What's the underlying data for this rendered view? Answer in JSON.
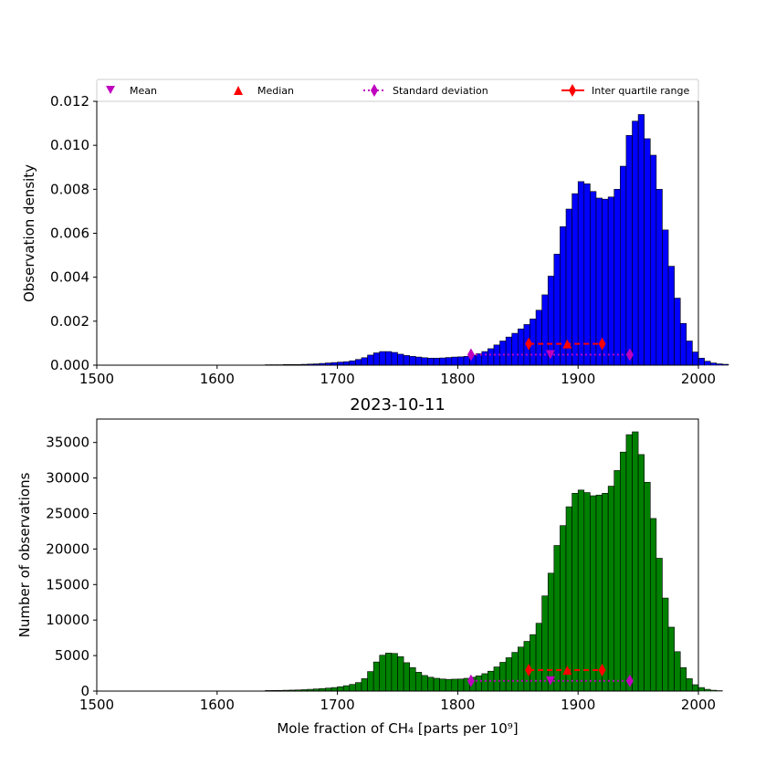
{
  "chart_data": [
    {
      "type": "bar",
      "title": "",
      "xlabel": "",
      "ylabel": "Observation density",
      "xlim": [
        1500,
        2000
      ],
      "ylim": [
        0,
        0.012
      ],
      "xticks": [
        1500,
        1600,
        1700,
        1800,
        1900,
        2000
      ],
      "yticks": [
        0.0,
        0.002,
        0.004,
        0.006,
        0.008,
        0.01,
        0.012
      ],
      "ytick_labels": [
        "0.000",
        "0.002",
        "0.004",
        "0.006",
        "0.008",
        "0.010",
        "0.012"
      ],
      "bar_color": "#0000ff",
      "bin_start": 1500,
      "bin_width": 5,
      "values": [
        0,
        0,
        0,
        0,
        0,
        0,
        0,
        0,
        0,
        0,
        0,
        0,
        0,
        0,
        0,
        0,
        0,
        0,
        0,
        0,
        0,
        0,
        0,
        0,
        0,
        0,
        0,
        0,
        2e-05,
        2e-05,
        2e-05,
        3e-05,
        3e-05,
        3e-05,
        4e-05,
        5e-05,
        6e-05,
        8e-05,
        0.0001,
        0.00012,
        0.00014,
        0.00016,
        0.0002,
        0.00026,
        0.00034,
        0.00046,
        0.00056,
        0.00062,
        0.00062,
        0.00058,
        0.0005,
        0.00044,
        0.0004,
        0.00037,
        0.00034,
        0.00032,
        0.00032,
        0.00033,
        0.00035,
        0.00037,
        0.00038,
        0.0004,
        0.00045,
        0.00052,
        0.00062,
        0.00075,
        0.00092,
        0.0011,
        0.00128,
        0.00145,
        0.00165,
        0.00185,
        0.0021,
        0.0025,
        0.0032,
        0.00405,
        0.00505,
        0.0063,
        0.0071,
        0.0078,
        0.00835,
        0.00825,
        0.0079,
        0.0076,
        0.00755,
        0.00765,
        0.008,
        0.00905,
        0.01045,
        0.0111,
        0.0114,
        0.0103,
        0.00955,
        0.008,
        0.00615,
        0.0045,
        0.00305,
        0.0019,
        0.0011,
        0.0006,
        0.00032,
        0.00018,
        0.0001,
        6e-05,
        4e-05
      ],
      "stats": {
        "mean": {
          "x": 1877,
          "y": 0.00048
        },
        "median": {
          "x": 1891,
          "y": 0.00097
        },
        "std_range": {
          "x": [
            1811,
            1943
          ],
          "y": 0.00048
        },
        "iqr_range": {
          "x": [
            1859,
            1920
          ],
          "y": 0.00097
        }
      }
    },
    {
      "type": "bar",
      "title": "2023-10-11",
      "xlabel": "Mole fraction of CH₄ [parts per 10⁹]",
      "ylabel": "Number of observations",
      "xlim": [
        1500,
        2000
      ],
      "ylim": [
        0,
        38300
      ],
      "xticks": [
        1500,
        1600,
        1700,
        1800,
        1900,
        2000
      ],
      "yticks": [
        0,
        5000,
        10000,
        15000,
        20000,
        25000,
        30000,
        35000
      ],
      "ytick_labels": [
        "0",
        "5000",
        "10000",
        "15000",
        "20000",
        "25000",
        "30000",
        "35000"
      ],
      "bar_color": "#008000",
      "bin_start": 1500,
      "bin_width": 5,
      "values": [
        0,
        0,
        0,
        0,
        0,
        0,
        0,
        0,
        0,
        0,
        0,
        0,
        0,
        0,
        0,
        0,
        0,
        0,
        0,
        0,
        0,
        0,
        0,
        0,
        0,
        0,
        0,
        0,
        80,
        90,
        100,
        120,
        140,
        160,
        200,
        250,
        300,
        360,
        420,
        500,
        620,
        760,
        940,
        1200,
        1750,
        2750,
        4100,
        5050,
        5350,
        5300,
        4850,
        4000,
        3300,
        2650,
        2200,
        1950,
        1800,
        1700,
        1650,
        1680,
        1700,
        1800,
        1950,
        2150,
        2450,
        2800,
        3400,
        4050,
        4700,
        5450,
        6200,
        7000,
        7950,
        9550,
        13400,
        16600,
        20500,
        23300,
        25950,
        27850,
        28300,
        27950,
        27500,
        27600,
        27850,
        28850,
        31050,
        33650,
        36100,
        36500,
        33300,
        29400,
        24300,
        18700,
        13100,
        9000,
        5550,
        3300,
        1750,
        900,
        500,
        250,
        120,
        60
      ],
      "stats": {
        "mean": {
          "x": 1877,
          "y": 1450
        },
        "median": {
          "x": 1891,
          "y": 2950
        },
        "std_range": {
          "x": [
            1811,
            1943
          ],
          "y": 1450
        },
        "iqr_range": {
          "x": [
            1859,
            1920
          ],
          "y": 2950
        }
      }
    }
  ],
  "legend": {
    "placement": "top",
    "entries": [
      {
        "label": "Mean",
        "marker": "triangle-down",
        "color": "#bf00bf"
      },
      {
        "label": "Median",
        "marker": "triangle-up",
        "color": "#ff0000"
      },
      {
        "label": "Standard deviation",
        "marker": "diamond-dotted-line",
        "color": "#bf00bf"
      },
      {
        "label": "Inter quartile range",
        "marker": "diamond-solid-line",
        "color": "#ff0000"
      }
    ]
  },
  "colors": {
    "mean": "#bf00bf",
    "median": "#ff0000",
    "std": "#bf00bf",
    "iqr": "#ff0000"
  }
}
